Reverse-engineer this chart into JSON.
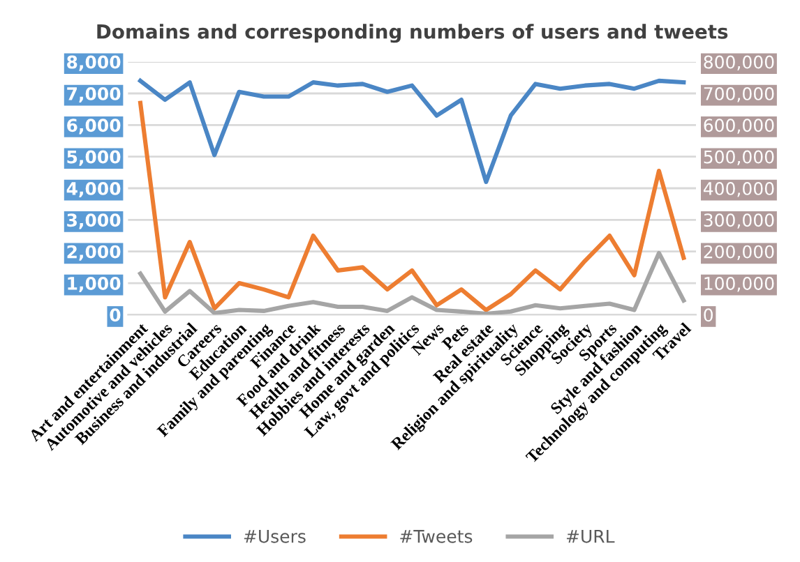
{
  "chart_data": {
    "type": "line",
    "title": "Domains and corresponding numbers of users and tweets",
    "categories": [
      "Art and entertainment",
      "Automotive and vehicles",
      "Business and industrial",
      "Careers",
      "Education",
      "Family and parenting",
      "Finance",
      "Food and drink",
      "Health and fitness",
      "Hobbies and interests",
      "Home and garden",
      "Law, govt and politics",
      "News",
      "Pets",
      "Real estate",
      "Religion and spirituality",
      "Science",
      "Shopping",
      "Society",
      "Sports",
      "Style and fashion",
      "Technology and computing",
      "Travel"
    ],
    "series": [
      {
        "name": "#Users",
        "color": "#4a86c5",
        "values": [
          7400,
          6800,
          7350,
          5050,
          7050,
          6900,
          6900,
          7350,
          7250,
          7300,
          7050,
          7250,
          6300,
          6800,
          4200,
          6300,
          7300,
          7150,
          7250,
          7300,
          7150,
          7400,
          7350
        ]
      },
      {
        "name": "#Tweets",
        "color": "#ed7d31",
        "axis": "y2",
        "values": [
          670000,
          55000,
          230000,
          20000,
          100000,
          80000,
          55000,
          250000,
          140000,
          150000,
          80000,
          140000,
          30000,
          80000,
          15000,
          65000,
          140000,
          80000,
          170000,
          250000,
          125000,
          455000,
          180000
        ]
      },
      {
        "name": "#URL",
        "color": "#a5a5a5",
        "axis": "y2",
        "values": [
          130000,
          10000,
          75000,
          5000,
          15000,
          12000,
          28000,
          40000,
          25000,
          25000,
          12000,
          55000,
          15000,
          10000,
          3000,
          10000,
          30000,
          20000,
          28000,
          35000,
          15000,
          195000,
          45000
        ]
      }
    ],
    "ylim": [
      0,
      8000
    ],
    "yticks": [
      {
        "value": 0,
        "label": "0"
      },
      {
        "value": 1000,
        "label": "1,000"
      },
      {
        "value": 2000,
        "label": "2,000"
      },
      {
        "value": 3000,
        "label": "3,000"
      },
      {
        "value": 4000,
        "label": "4,000"
      },
      {
        "value": 5000,
        "label": "5,000"
      },
      {
        "value": 6000,
        "label": "6,000"
      },
      {
        "value": 7000,
        "label": "7,000"
      },
      {
        "value": 8000,
        "label": "8,000"
      }
    ],
    "y2lim": [
      0,
      800000
    ],
    "y2ticks": [
      {
        "value": 0,
        "label": "0"
      },
      {
        "value": 100000,
        "label": "100,000"
      },
      {
        "value": 200000,
        "label": "200,000"
      },
      {
        "value": 300000,
        "label": "300,000"
      },
      {
        "value": 400000,
        "label": "400,000"
      },
      {
        "value": 500000,
        "label": "500,000"
      },
      {
        "value": 600000,
        "label": "600,000"
      },
      {
        "value": 700000,
        "label": "700,000"
      },
      {
        "value": 800000,
        "label": "800,000"
      }
    ],
    "grid": "y",
    "legend": "bottom",
    "marker": "none",
    "line_style": "solid"
  }
}
